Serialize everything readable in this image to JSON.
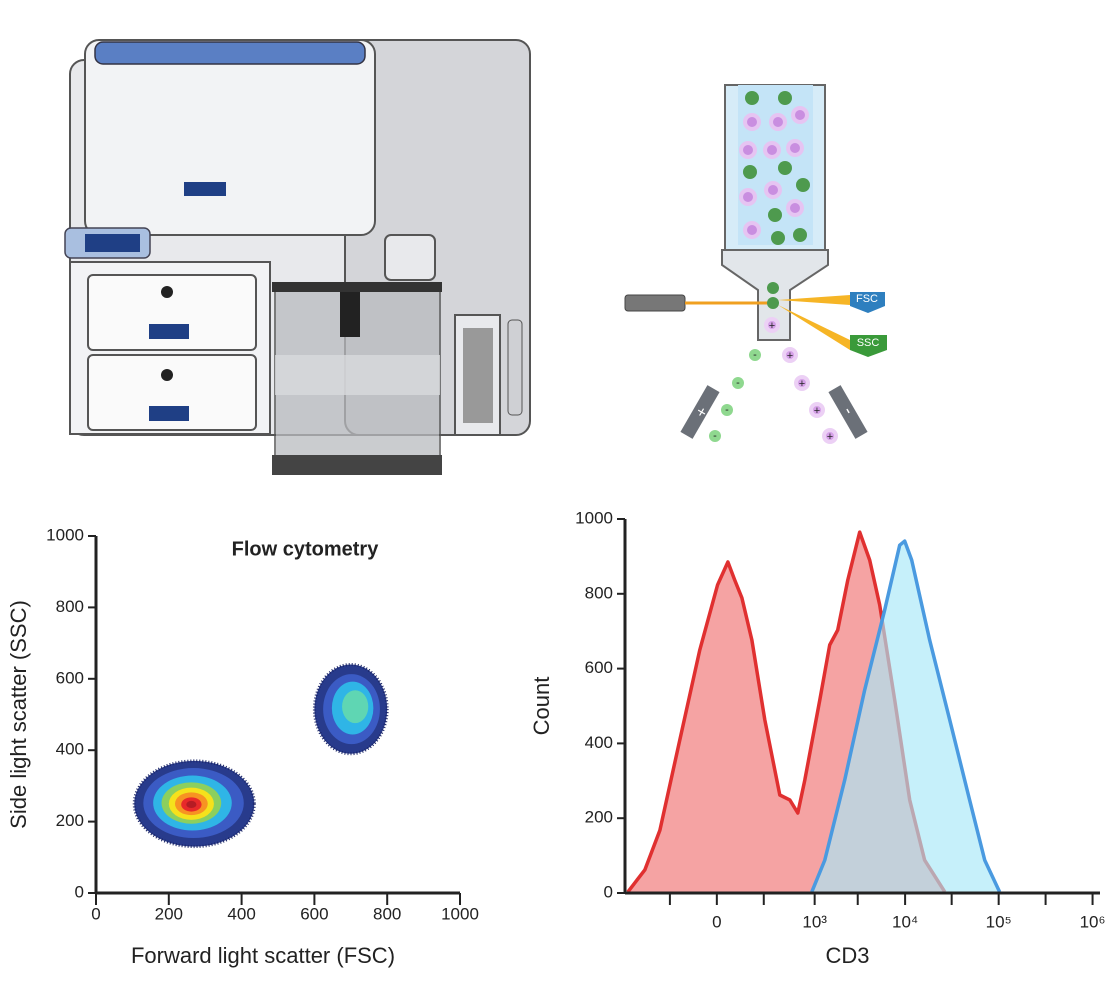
{
  "diagram": {
    "detectors": [
      "FSC",
      "SSC"
    ],
    "charge_plus": "+",
    "charge_minus": "-"
  },
  "chart_data": [
    {
      "type": "contour",
      "title": "Flow cytometry",
      "xlabel": "Forward light scatter (FSC)",
      "ylabel": "Side light scatter (SSC)",
      "xlim": [
        0,
        1000
      ],
      "ylim": [
        0,
        1000
      ],
      "xticks": [
        0,
        200,
        400,
        600,
        800,
        1000
      ],
      "yticks": [
        0,
        200,
        400,
        600,
        800,
        1000
      ],
      "contours": [
        {
          "color": "#283b8c",
          "cx": 270,
          "cy": 250,
          "rx": 165,
          "ry": 120
        },
        {
          "color": "#3b5bc4",
          "cx": 268,
          "cy": 252,
          "rx": 138,
          "ry": 98
        },
        {
          "color": "#2fb5e6",
          "cx": 265,
          "cy": 252,
          "rx": 108,
          "ry": 77
        },
        {
          "color": "#8ccf5e",
          "cx": 262,
          "cy": 252,
          "rx": 82,
          "ry": 58
        },
        {
          "color": "#f5e11c",
          "cx": 262,
          "cy": 250,
          "rx": 62,
          "ry": 45
        },
        {
          "color": "#f79322",
          "cx": 262,
          "cy": 250,
          "rx": 45,
          "ry": 32
        },
        {
          "color": "#e8292a",
          "cx": 262,
          "cy": 248,
          "rx": 28,
          "ry": 20
        },
        {
          "color": "#b51c24",
          "cx": 262,
          "cy": 248,
          "rx": 14,
          "ry": 10
        },
        {
          "color": "#283b8c",
          "cx": 700,
          "cy": 515,
          "rx": 100,
          "ry": 125
        },
        {
          "color": "#3b5bc4",
          "cx": 702,
          "cy": 515,
          "rx": 78,
          "ry": 98
        },
        {
          "color": "#2fb5e6",
          "cx": 705,
          "cy": 518,
          "rx": 57,
          "ry": 74
        },
        {
          "color": "#5fd6b3",
          "cx": 712,
          "cy": 522,
          "rx": 36,
          "ry": 46
        }
      ]
    },
    {
      "type": "area",
      "xlabel": "CD3",
      "ylabel": "Count",
      "xscale": "biexponential",
      "xlim": [
        -850,
        1200000
      ],
      "ylim": [
        0,
        1000
      ],
      "xticks": [
        {
          "value": 0,
          "label": "0"
        },
        {
          "value": 1000,
          "label": "10³"
        },
        {
          "value": 10000,
          "label": "10⁴"
        },
        {
          "value": 100000,
          "label": "10⁵"
        },
        {
          "value": 1000000,
          "label": "10⁶"
        }
      ],
      "xminorticks": [
        -216,
        216,
        3062,
        31523,
        316128
      ],
      "yticks": [
        0,
        200,
        400,
        600,
        800,
        1000
      ],
      "series": [
        {
          "color": "#e03030",
          "fill": "#f5a3a3",
          "x": [
            -785,
            -483,
            -304,
            -148,
            -52,
            2,
            31,
            55,
            85,
            136,
            224,
            368,
            498,
            628,
            763,
            1147,
            1492,
            1837,
            2377,
            3220,
            4140,
            5320,
            7730,
            11200,
            16200,
            26600
          ],
          "y": [
            3,
            62,
            168,
            409,
            650,
            824,
            885,
            837,
            789,
            676,
            463,
            262,
            249,
            214,
            302,
            516,
            663,
            703,
            837,
            965,
            890,
            770,
            516,
            249,
            88,
            3
          ]
        },
        {
          "color": "#4a9ae0",
          "fill": "#a8e8f8",
          "x": [
            925,
            1309,
            2200,
            3650,
            6020,
            8750,
            9900,
            11760,
            18350,
            30000,
            49000,
            70900,
            102400
          ],
          "y": [
            3,
            88,
            302,
            543,
            757,
            930,
            941,
            890,
            676,
            463,
            249,
            88,
            3
          ]
        }
      ]
    }
  ]
}
